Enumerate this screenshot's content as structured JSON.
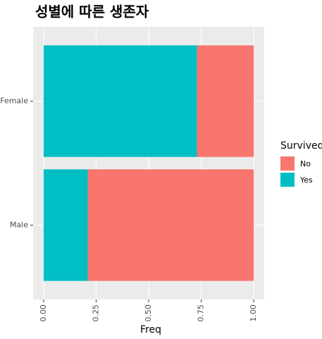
{
  "chart_data": {
    "type": "stacked-barh",
    "title": "성별에 따른 생존자",
    "categories": [
      "Female",
      "Male"
    ],
    "series": [
      {
        "name": "Yes",
        "color": "#00bfc4",
        "values": [
          0.73,
          0.21
        ]
      },
      {
        "name": "No",
        "color": "#f8766d",
        "values": [
          0.27,
          0.79
        ]
      }
    ],
    "xlabel": "Freq",
    "xlim": [
      -0.05,
      1.05
    ],
    "xticks": [
      {
        "value": 0,
        "label": "0.00"
      },
      {
        "value": 0.25,
        "label": "0.25"
      },
      {
        "value": 0.5,
        "label": "0.50"
      },
      {
        "value": 0.75,
        "label": "0.75"
      },
      {
        "value": 1,
        "label": "1.00"
      }
    ],
    "legend_title": "Survived",
    "legend_order": [
      "No",
      "Yes"
    ],
    "grid": true
  }
}
